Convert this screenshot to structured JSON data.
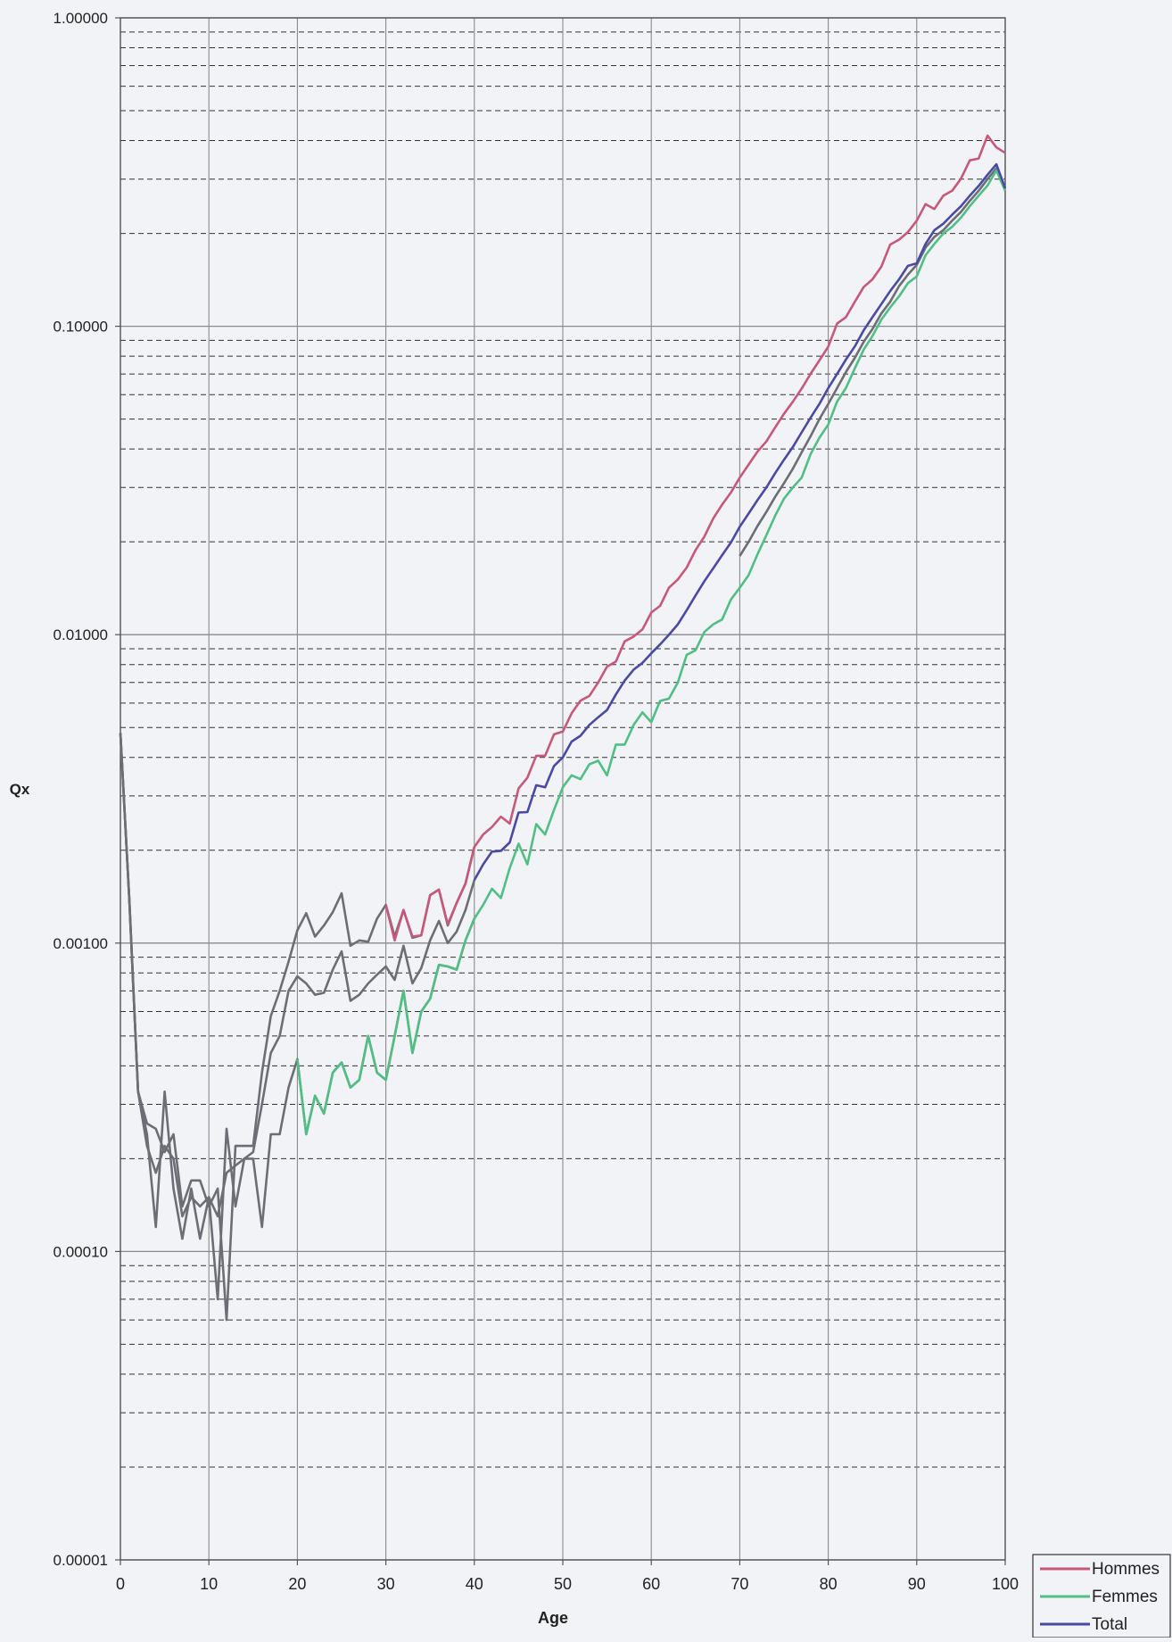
{
  "chart_data": {
    "type": "line",
    "title": "",
    "xlabel": "Age",
    "ylabel": "Qx",
    "xlim": [
      0,
      100
    ],
    "ylim": [
      1e-05,
      1.0
    ],
    "yscale": "log",
    "grid": true,
    "minor_grid": "dashed",
    "legend_position": "bottom-right",
    "x_ticks": [
      "0",
      "10",
      "20",
      "30",
      "40",
      "50",
      "60",
      "70",
      "80",
      "90",
      "100"
    ],
    "y_ticks": [
      "1.00000",
      "0.10000",
      "0.01000",
      "0.00100",
      "0.00010",
      "0.00001"
    ],
    "series": [
      {
        "name": "Hommes",
        "color": "#c8587a",
        "x": [
          30,
          31,
          32,
          33,
          34,
          35,
          36,
          37,
          38,
          39,
          40,
          41,
          42,
          43,
          44,
          45,
          46,
          47,
          48,
          49,
          50,
          51,
          52,
          53,
          54,
          55,
          56,
          57,
          58,
          59,
          60,
          61,
          62,
          63,
          64,
          65,
          66,
          67,
          68,
          69,
          70,
          71,
          72,
          73,
          74,
          75,
          76,
          77,
          78,
          79,
          80,
          81,
          82,
          83,
          84,
          85,
          86,
          87,
          88,
          89,
          90,
          91,
          92,
          93,
          94,
          95,
          96,
          97,
          98,
          99,
          100
        ],
        "y": [
          0.00133,
          0.00102,
          0.00128,
          0.00105,
          0.00106,
          0.00143,
          0.00149,
          0.00115,
          0.00135,
          0.00156,
          0.00205,
          0.00225,
          0.00238,
          0.00257,
          0.00244,
          0.00317,
          0.00344,
          0.00405,
          0.00405,
          0.00475,
          0.00485,
          0.00556,
          0.00611,
          0.00633,
          0.007,
          0.00788,
          0.00818,
          0.00951,
          0.00986,
          0.0104,
          0.0118,
          0.0124,
          0.0142,
          0.0151,
          0.0165,
          0.0188,
          0.0208,
          0.0238,
          0.0264,
          0.0289,
          0.0323,
          0.0356,
          0.0392,
          0.0423,
          0.047,
          0.052,
          0.0569,
          0.0628,
          0.0701,
          0.0775,
          0.0859,
          0.102,
          0.107,
          0.12,
          0.134,
          0.142,
          0.156,
          0.184,
          0.191,
          0.202,
          0.22,
          0.249,
          0.24,
          0.265,
          0.275,
          0.301,
          0.345,
          0.35,
          0.415,
          0.38,
          0.365
        ]
      },
      {
        "name": "Femmes",
        "color": "#4fbf84",
        "x": [
          20,
          21,
          22,
          23,
          24,
          25,
          26,
          27,
          28,
          29,
          30,
          31,
          32,
          33,
          34,
          35,
          36,
          37,
          38,
          39,
          40,
          41,
          42,
          43,
          44,
          45,
          46,
          47,
          48,
          49,
          50,
          51,
          52,
          53,
          54,
          55,
          56,
          57,
          58,
          59,
          60,
          61,
          62,
          63,
          64,
          65,
          66,
          67,
          68,
          69,
          70,
          71,
          72,
          73,
          74,
          75,
          76,
          77,
          78,
          79,
          80,
          81,
          82,
          83,
          84,
          85,
          86,
          87,
          88,
          89,
          90,
          91,
          92,
          93,
          94,
          95,
          96,
          97,
          98,
          99,
          100
        ],
        "y": [
          0.00042,
          0.00024,
          0.00032,
          0.00028,
          0.00038,
          0.00041,
          0.00034,
          0.00036,
          0.0005,
          0.00038,
          0.00036,
          0.0005,
          0.0007,
          0.00044,
          0.0006,
          0.00066,
          0.00085,
          0.00084,
          0.00082,
          0.00102,
          0.0012,
          0.00133,
          0.0015,
          0.0014,
          0.00175,
          0.0021,
          0.0018,
          0.00243,
          0.00225,
          0.0027,
          0.0032,
          0.0035,
          0.0034,
          0.0038,
          0.0039,
          0.0035,
          0.0044,
          0.0044,
          0.0051,
          0.0056,
          0.0052,
          0.0061,
          0.0062,
          0.007,
          0.0086,
          0.0089,
          0.0102,
          0.0108,
          0.0112,
          0.013,
          0.0142,
          0.0156,
          0.0182,
          0.021,
          0.0243,
          0.0276,
          0.03,
          0.0323,
          0.0385,
          0.0435,
          0.048,
          0.057,
          0.063,
          0.073,
          0.084,
          0.093,
          0.105,
          0.115,
          0.125,
          0.138,
          0.145,
          0.17,
          0.185,
          0.2,
          0.21,
          0.225,
          0.245,
          0.265,
          0.286,
          0.32,
          0.275
        ]
      },
      {
        "name": "Total",
        "color": "#4a4aa6",
        "x": [
          40,
          41,
          42,
          43,
          44,
          45,
          46,
          47,
          48,
          49,
          50,
          51,
          52,
          53,
          54,
          55,
          56,
          57,
          58,
          59,
          60,
          61,
          62,
          63,
          64,
          65,
          66,
          67,
          68,
          69,
          70,
          71,
          72,
          73,
          74,
          75,
          76,
          77,
          78,
          79,
          80,
          81,
          82,
          83,
          84,
          85,
          86,
          87,
          88,
          89,
          90,
          91,
          92,
          93,
          94,
          95,
          96,
          97,
          98,
          99,
          100
        ],
        "y": [
          0.0016,
          0.0018,
          0.00198,
          0.00199,
          0.00212,
          0.00265,
          0.00266,
          0.00325,
          0.0032,
          0.00375,
          0.004,
          0.0045,
          0.0047,
          0.0051,
          0.0054,
          0.0057,
          0.0064,
          0.0071,
          0.0077,
          0.0081,
          0.0087,
          0.0093,
          0.01,
          0.0108,
          0.012,
          0.0134,
          0.0149,
          0.0164,
          0.0181,
          0.0199,
          0.0224,
          0.0247,
          0.0273,
          0.03,
          0.0334,
          0.0369,
          0.0406,
          0.0453,
          0.0505,
          0.056,
          0.063,
          0.07,
          0.078,
          0.086,
          0.097,
          0.107,
          0.118,
          0.13,
          0.142,
          0.157,
          0.16,
          0.185,
          0.205,
          0.215,
          0.23,
          0.245,
          0.265,
          0.285,
          0.31,
          0.335,
          0.28
        ]
      },
      {
        "name": "",
        "color": "#6d6d75",
        "x": [
          0,
          1,
          2,
          3,
          4,
          5,
          6,
          7,
          8,
          9,
          10,
          11,
          12,
          13,
          14,
          15,
          16,
          17,
          18,
          19,
          20,
          21,
          22,
          23,
          24,
          25,
          26,
          27,
          28,
          29,
          30,
          31,
          32,
          33,
          34,
          35,
          36,
          37,
          38,
          39,
          40
        ],
        "y": [
          0.0048,
          0.0014,
          0.00033,
          0.00026,
          0.00025,
          0.00021,
          0.00024,
          0.00014,
          0.00017,
          0.00017,
          0.00014,
          0.00016,
          6e-05,
          0.00022,
          0.00022,
          0.00022,
          0.00038,
          0.00058,
          0.0007,
          0.00087,
          0.0011,
          0.00125,
          0.00105,
          0.00114,
          0.00126,
          0.00145,
          0.00098,
          0.00102,
          0.00101,
          0.0012,
          0.00133,
          0.00105,
          0.00128,
          0.00104,
          0.00106,
          0.00143,
          0.00149,
          0.00114,
          0.00135,
          0.00156,
          0.00205
        ]
      },
      {
        "name": "",
        "color": "#6d6d75",
        "x": [
          0,
          1,
          2,
          3,
          4,
          5,
          6,
          7,
          8,
          9,
          10,
          11,
          12,
          13,
          14,
          15,
          16,
          17,
          18,
          19,
          20,
          21,
          22,
          23,
          24,
          25,
          26,
          27,
          28,
          29,
          30,
          31,
          32,
          33,
          34,
          35,
          36,
          37,
          38,
          39,
          40
        ],
        "y": [
          0.0048,
          0.0014,
          0.00033,
          0.00024,
          0.00012,
          0.00033,
          0.00016,
          0.00011,
          0.00016,
          0.00011,
          0.00015,
          7e-05,
          0.00025,
          0.00014,
          0.0002,
          0.0002,
          0.00012,
          0.00024,
          0.00024,
          0.00034,
          0.00042,
          0.00024,
          0.00032,
          0.00028,
          0.00038,
          0.00041,
          0.00034,
          0.00036,
          0.0005,
          0.00038,
          0.00036,
          0.0005,
          0.0007,
          0.00044,
          0.0006,
          0.00066,
          0.00085,
          0.00084,
          0.00082,
          0.00102,
          0.0012
        ]
      },
      {
        "name": "",
        "color": "#6d6d75",
        "x": [
          0,
          1,
          2,
          3,
          4,
          5,
          6,
          7,
          8,
          9,
          10,
          11,
          12,
          13,
          14,
          15,
          16,
          17,
          18,
          19,
          20,
          21,
          22,
          23,
          24,
          25,
          26,
          27,
          28,
          29,
          30,
          31,
          32,
          33,
          34,
          35,
          36,
          37,
          38,
          39,
          40
        ],
        "y": [
          0.0048,
          0.0014,
          0.00033,
          0.00022,
          0.00018,
          0.00022,
          0.0002,
          0.00013,
          0.00015,
          0.00014,
          0.00015,
          0.00013,
          0.00018,
          0.00019,
          0.0002,
          0.00021,
          0.0003,
          0.00044,
          0.0005,
          0.0007,
          0.00078,
          0.00074,
          0.00068,
          0.00069,
          0.00082,
          0.00094,
          0.00065,
          0.00068,
          0.00074,
          0.00079,
          0.00084,
          0.00076,
          0.00098,
          0.00074,
          0.00083,
          0.00102,
          0.00118,
          0.001,
          0.00109,
          0.00128,
          0.0016
        ]
      },
      {
        "name": "",
        "color": "#6d6d75",
        "x": [
          70,
          71,
          72,
          73,
          74,
          75,
          76,
          77,
          78,
          79,
          80,
          81,
          82,
          83,
          84,
          85,
          86,
          87,
          88,
          89,
          90,
          91,
          92,
          93,
          94,
          95,
          96,
          97,
          98,
          99,
          100
        ],
        "y": [
          0.018,
          0.02,
          0.0225,
          0.025,
          0.028,
          0.031,
          0.0345,
          0.039,
          0.044,
          0.05,
          0.056,
          0.063,
          0.071,
          0.079,
          0.089,
          0.098,
          0.11,
          0.12,
          0.135,
          0.147,
          0.158,
          0.18,
          0.195,
          0.205,
          0.22,
          0.235,
          0.255,
          0.275,
          0.3,
          0.325,
          0.28
        ]
      }
    ]
  }
}
